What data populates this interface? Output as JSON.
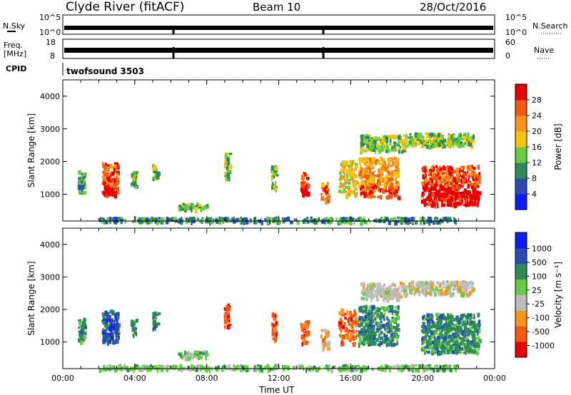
{
  "header": {
    "title": "Clyde River (fitACF)",
    "beam": "Beam 10",
    "date": "28/Oct/2016"
  },
  "noise_panel": {
    "left_label": "N.Sky",
    "right_label": "N.Search",
    "y_ticks_left": [
      "10^5",
      "10^0"
    ],
    "y_ticks_right": [
      "10^5",
      "10^0"
    ]
  },
  "freq_panel": {
    "left_label_1": "Freq.",
    "left_label_2": "[MHz]",
    "right_label": "Nave",
    "y_ticks_left": [
      "18",
      "8"
    ],
    "y_ticks_right": [
      "60",
      "0"
    ]
  },
  "cpid": {
    "label": "CPID",
    "value": "twofsound 3503"
  },
  "chart_data": [
    {
      "type": "heatmap",
      "name": "Power",
      "ylabel": "Slant Range [km]",
      "ylim": [
        180,
        4500
      ],
      "y_ticks": [
        "1000",
        "2000",
        "3000",
        "4000"
      ],
      "colorbar": {
        "label": "Power [dB]",
        "tick_labels": [
          "4",
          "8",
          "12",
          "16",
          "20",
          "24",
          "28"
        ],
        "colors": [
          "#0c1df5",
          "#2a4bb6",
          "#2e8b57",
          "#66cc44",
          "#f2c40a",
          "#f7941d",
          "#f25a10",
          "#e80000"
        ]
      }
    },
    {
      "type": "heatmap",
      "name": "Velocity",
      "xlabel": "Time UT",
      "ylabel": "Slant Range [km]",
      "ylim": [
        180,
        4500
      ],
      "y_ticks": [
        "1000",
        "2000",
        "3000",
        "4000"
      ],
      "x_ticks": [
        "00:00",
        "04:00",
        "08:00",
        "12:00",
        "16:00",
        "20:00",
        "00:00"
      ],
      "colorbar": {
        "label": "Velocity [m s⁻¹]",
        "tick_labels": [
          "1000",
          "500",
          "100",
          "25",
          "-25",
          "-100",
          "-500",
          "-1000"
        ],
        "colors": [
          "#0c1df5",
          "#2a4bb6",
          "#2e8b57",
          "#66cc44",
          "#bdbdbd",
          "#f7941d",
          "#f25a10",
          "#e80000"
        ]
      }
    }
  ]
}
